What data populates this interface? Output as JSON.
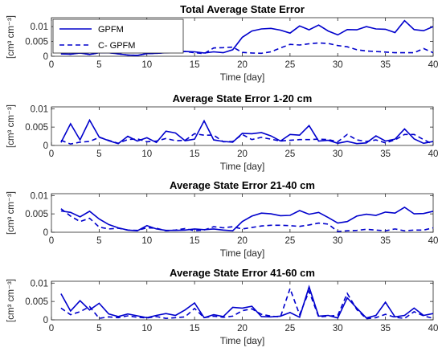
{
  "chart_data": [
    {
      "type": "line",
      "title": "Total Average State Error",
      "xlabel": "Time [day]",
      "ylabel": "[cm³ cm⁻³]",
      "xlim": [
        0,
        40
      ],
      "ylim": [
        0,
        0.013
      ],
      "xticks": [
        0,
        5,
        10,
        15,
        20,
        25,
        30,
        35,
        40
      ],
      "yticks": [
        0,
        0.005,
        0.01
      ],
      "ytick_labels": [
        "0",
        "0.005",
        "0.01"
      ],
      "legend": {
        "position": "top-left",
        "entries": [
          "GPFM",
          "C- GPFM"
        ]
      },
      "x": [
        1,
        2,
        3,
        4,
        5,
        6,
        7,
        8,
        9,
        10,
        11,
        12,
        13,
        14,
        15,
        16,
        17,
        18,
        19,
        20,
        21,
        22,
        23,
        24,
        25,
        26,
        27,
        28,
        29,
        30,
        31,
        32,
        33,
        34,
        35,
        36,
        37,
        38,
        39,
        40
      ],
      "series": [
        {
          "name": "GPFM",
          "style": "solid",
          "color": "#0000cc",
          "values": [
            0.0008,
            0.0007,
            0.0011,
            0.0006,
            0.0012,
            0.0012,
            0.0008,
            0.0004,
            0.0003,
            0.0009,
            0.001,
            0.0012,
            0.0014,
            0.0016,
            0.0015,
            0.0011,
            0.0015,
            0.0012,
            0.0022,
            0.0064,
            0.0085,
            0.0092,
            0.0094,
            0.0088,
            0.0078,
            0.0102,
            0.0089,
            0.0105,
            0.0085,
            0.0072,
            0.009,
            0.0089,
            0.01,
            0.0092,
            0.0091,
            0.008,
            0.012,
            0.009,
            0.0086,
            0.01
          ]
        },
        {
          "name": "C- GPFM",
          "style": "dashed",
          "color": "#0000cc",
          "values": [
            0.0008,
            0.0007,
            0.0011,
            0.0006,
            0.0012,
            0.0012,
            0.0008,
            0.0004,
            0.0003,
            0.0009,
            0.001,
            0.0012,
            0.0014,
            0.0016,
            0.0012,
            0.0009,
            0.0028,
            0.0029,
            0.0031,
            0.0013,
            0.0011,
            0.001,
            0.0015,
            0.0028,
            0.004,
            0.0038,
            0.0042,
            0.0045,
            0.0043,
            0.0036,
            0.0032,
            0.0022,
            0.0018,
            0.0016,
            0.0014,
            0.0012,
            0.0012,
            0.0012,
            0.0026,
            0.0012
          ]
        }
      ]
    },
    {
      "type": "line",
      "title": "Average State Error 1-20 cm",
      "xlabel": "Time [day]",
      "ylabel": "[cm³ cm⁻³]",
      "xlim": [
        0,
        40
      ],
      "ylim": [
        0,
        0.0105
      ],
      "xticks": [
        0,
        5,
        10,
        15,
        20,
        25,
        30,
        35,
        40
      ],
      "yticks": [
        0,
        0.005,
        0.01
      ],
      "ytick_labels": [
        "0",
        "0.005",
        "0.01"
      ],
      "x": [
        1,
        2,
        3,
        4,
        5,
        6,
        7,
        8,
        9,
        10,
        11,
        12,
        13,
        14,
        15,
        16,
        17,
        18,
        19,
        20,
        21,
        22,
        23,
        24,
        25,
        26,
        27,
        28,
        29,
        30,
        31,
        32,
        33,
        34,
        35,
        36,
        37,
        38,
        39,
        40
      ],
      "series": [
        {
          "style": "solid",
          "color": "#0000cc",
          "values": [
            0.0008,
            0.0059,
            0.0015,
            0.0069,
            0.0023,
            0.0013,
            0.0005,
            0.0025,
            0.0012,
            0.0021,
            0.0008,
            0.0039,
            0.0034,
            0.0013,
            0.0017,
            0.0067,
            0.0015,
            0.0011,
            0.0009,
            0.0033,
            0.0032,
            0.0035,
            0.0026,
            0.0012,
            0.003,
            0.0028,
            0.0054,
            0.0012,
            0.0014,
            0.0006,
            0.0011,
            0.0005,
            0.0007,
            0.0026,
            0.0012,
            0.0017,
            0.0045,
            0.0018,
            0.0006,
            0.0011
          ]
        },
        {
          "style": "dashed",
          "color": "#0000cc",
          "values": [
            0.0014,
            0.0004,
            0.0009,
            0.0011,
            0.0022,
            0.0014,
            0.0006,
            0.0016,
            0.0018,
            0.001,
            0.0012,
            0.0019,
            0.0013,
            0.0014,
            0.0032,
            0.0028,
            0.0028,
            0.001,
            0.0011,
            0.003,
            0.0016,
            0.0022,
            0.0017,
            0.0012,
            0.0014,
            0.0016,
            0.0016,
            0.0017,
            0.0016,
            0.001,
            0.003,
            0.0015,
            0.0011,
            0.0015,
            0.0007,
            0.0015,
            0.003,
            0.003,
            0.0016,
            0.0003
          ]
        }
      ]
    },
    {
      "type": "line",
      "title": "Average State Error 21-40 cm",
      "xlabel": "Time [day]",
      "ylabel": "[cm³ cm⁻³]",
      "xlim": [
        0,
        40
      ],
      "ylim": [
        0,
        0.0105
      ],
      "xticks": [
        0,
        5,
        10,
        15,
        20,
        25,
        30,
        35,
        40
      ],
      "yticks": [
        0,
        0.005,
        0.01
      ],
      "ytick_labels": [
        "0",
        "0.005",
        "0.01"
      ],
      "x": [
        1,
        2,
        3,
        4,
        5,
        6,
        7,
        8,
        9,
        10,
        11,
        12,
        13,
        14,
        15,
        16,
        17,
        18,
        19,
        20,
        21,
        22,
        23,
        24,
        25,
        26,
        27,
        28,
        29,
        30,
        31,
        32,
        33,
        34,
        35,
        36,
        37,
        38,
        39,
        40
      ],
      "series": [
        {
          "style": "solid",
          "color": "#0000cc",
          "values": [
            0.0058,
            0.0054,
            0.0042,
            0.0057,
            0.0036,
            0.0021,
            0.0012,
            0.0006,
            0.0004,
            0.0018,
            0.0009,
            0.0005,
            0.0005,
            0.0006,
            0.0009,
            0.0007,
            0.0009,
            0.0006,
            0.0004,
            0.0029,
            0.0044,
            0.0052,
            0.005,
            0.0045,
            0.0046,
            0.0059,
            0.0049,
            0.0054,
            0.004,
            0.0025,
            0.0029,
            0.0044,
            0.0049,
            0.0046,
            0.0055,
            0.0052,
            0.0068,
            0.005,
            0.0051,
            0.0057
          ]
        },
        {
          "style": "dashed",
          "color": "#0000cc",
          "values": [
            0.0064,
            0.0044,
            0.0029,
            0.0038,
            0.0014,
            0.0009,
            0.0011,
            0.0006,
            0.0005,
            0.0012,
            0.0011,
            0.0004,
            0.0006,
            0.001,
            0.0004,
            0.0006,
            0.0015,
            0.0012,
            0.0015,
            0.0009,
            0.0013,
            0.0017,
            0.0019,
            0.0019,
            0.0018,
            0.0016,
            0.002,
            0.0025,
            0.0022,
            0.0002,
            0.0004,
            0.0005,
            0.0008,
            0.0006,
            0.0004,
            0.0009,
            0.0004,
            0.0006,
            0.0006,
            0.0012
          ]
        }
      ]
    },
    {
      "type": "line",
      "title": "Average State Error 41-60 cm",
      "xlabel": "Time [day]",
      "ylabel": "[cm³ cm⁻³]",
      "xlim": [
        0,
        40
      ],
      "ylim": [
        0,
        0.0105
      ],
      "xticks": [
        0,
        5,
        10,
        15,
        20,
        25,
        30,
        35,
        40
      ],
      "yticks": [
        0,
        0.005,
        0.01
      ],
      "ytick_labels": [
        "0",
        "0.005",
        "0.01"
      ],
      "x": [
        1,
        2,
        3,
        4,
        5,
        6,
        7,
        8,
        9,
        10,
        11,
        12,
        13,
        14,
        15,
        16,
        17,
        18,
        19,
        20,
        21,
        22,
        23,
        24,
        25,
        26,
        27,
        28,
        29,
        30,
        31,
        32,
        33,
        34,
        35,
        36,
        37,
        38,
        39,
        40
      ],
      "series": [
        {
          "style": "solid",
          "color": "#0000cc",
          "values": [
            0.0071,
            0.0024,
            0.0052,
            0.0027,
            0.0045,
            0.0016,
            0.0009,
            0.0016,
            0.0011,
            0.0006,
            0.0012,
            0.0017,
            0.0012,
            0.0027,
            0.0046,
            0.0006,
            0.0014,
            0.0009,
            0.0034,
            0.0032,
            0.0037,
            0.0009,
            0.0008,
            0.001,
            0.002,
            0.0007,
            0.009,
            0.001,
            0.0012,
            0.0005,
            0.006,
            0.0032,
            0.0005,
            0.0012,
            0.0048,
            0.0008,
            0.0012,
            0.0032,
            0.0012,
            0.0017
          ]
        },
        {
          "style": "dashed",
          "color": "#0000cc",
          "values": [
            0.0032,
            0.0014,
            0.0022,
            0.0036,
            0.0004,
            0.0008,
            0.0006,
            0.0011,
            0.0007,
            0.0005,
            0.0009,
            0.0004,
            0.0006,
            0.0008,
            0.0031,
            0.0006,
            0.001,
            0.0007,
            0.001,
            0.0025,
            0.003,
            0.0015,
            0.001,
            0.0008,
            0.0085,
            0.0014,
            0.0078,
            0.0008,
            0.001,
            0.0012,
            0.0072,
            0.0028,
            0.0003,
            0.0006,
            0.0015,
            0.0007,
            0.0004,
            0.0022,
            0.0011,
            0.0004
          ]
        }
      ]
    }
  ]
}
